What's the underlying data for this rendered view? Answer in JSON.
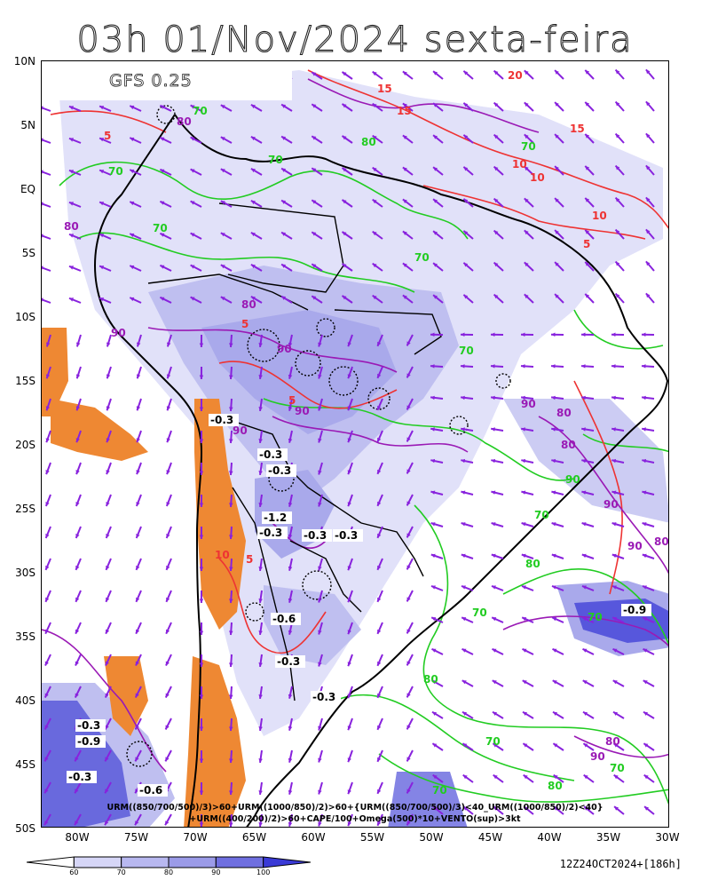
{
  "title": "03h 01/Nov/2024 sexta-feira",
  "model_label": "GFS 0.25",
  "lat_labels": [
    "10N",
    "5N",
    "EQ",
    "5S",
    "10S",
    "15S",
    "20S",
    "25S",
    "30S",
    "35S",
    "40S",
    "45S",
    "50S"
  ],
  "lon_labels": [
    "80W",
    "75W",
    "70W",
    "65W",
    "60W",
    "55W",
    "50W",
    "45W",
    "40W",
    "35W",
    "30W"
  ],
  "formula_line1": "URM((850/700/500)/3)>60+URM((1000/850)/2)>60+{URM((850/700/500)/3)<40_URM((1000/850)/2)<40}",
  "formula_line2": "+URM((400/200)/2)>60+CAPE/100+Omega(500)*10+VENTO(sup)>3kt",
  "colorbar": {
    "ticks": [
      "60",
      "70",
      "80",
      "90",
      "100"
    ],
    "colors": [
      "#d6d6f7",
      "#b8b8f0",
      "#9b9be8",
      "#6f6fe0",
      "#3a3ad6"
    ]
  },
  "run_info": "12Z24OCT2024+[186h]",
  "contour_labels": {
    "omega": [
      "-0.3",
      "-0.3",
      "-0.3",
      "-0.3",
      "-1.2",
      "-0.3",
      "-0.3",
      "-0.6",
      "-0.3",
      "-0.3",
      "-0.3",
      "-0.9",
      "-0.3",
      "-0.9",
      "-0.6"
    ],
    "humidity_green": [
      "70",
      "70",
      "70",
      "70",
      "80",
      "70",
      "70",
      "80",
      "70",
      "70",
      "90",
      "70",
      "70",
      "80",
      "70",
      "80",
      "70",
      "70"
    ],
    "humidity_purple": [
      "80",
      "80",
      "90",
      "90",
      "80",
      "90",
      "90",
      "80",
      "80",
      "90",
      "90",
      "80",
      "90",
      "80",
      "90"
    ],
    "cape_red": [
      "15",
      "15",
      "20",
      "10",
      "10",
      "15",
      "10",
      "5",
      "5",
      "5",
      "5",
      "10",
      "5"
    ]
  },
  "colors": {
    "coast": "#000000",
    "green": "#22cc22",
    "purple": "#9a1ab5",
    "red": "#ee3333",
    "orange": "#ee8833",
    "arrow": "#8822dd",
    "shade_light": "#d6d6f7",
    "shade_mid": "#9b9be8",
    "shade_dark": "#3a3ad6"
  }
}
